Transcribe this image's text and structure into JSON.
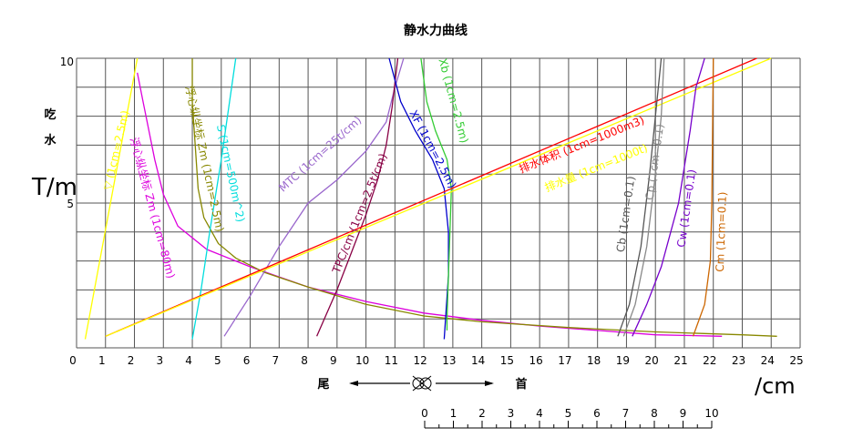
{
  "chart_data": {
    "type": "line",
    "title": "静水力曲线",
    "ylabel_chars": [
      "吃",
      "水"
    ],
    "ylabel_unit": "T/m",
    "xlabel": "/cm",
    "ylim": [
      0,
      10
    ],
    "xlim": [
      0,
      25
    ],
    "y_tick_labels": [
      "5",
      "10"
    ],
    "x_tick_labels": [
      "0",
      "1",
      "2",
      "3",
      "4",
      "5",
      "6",
      "7",
      "8",
      "9",
      "10",
      "11",
      "12",
      "13",
      "14",
      "15",
      "16",
      "17",
      "18",
      "19",
      "20",
      "21",
      "22",
      "23",
      "24",
      "25"
    ],
    "direction": {
      "stern": "尾",
      "bow": "首"
    },
    "ruler": {
      "ticks": [
        "0",
        "1",
        "2",
        "3",
        "4",
        "5",
        "6",
        "7",
        "8",
        "9",
        "10"
      ]
    },
    "grid": true,
    "series": [
      {
        "name": "▽ (1cm=2.5m)",
        "color": "#ffff00",
        "points": [
          [
            0.3,
            0.3
          ],
          [
            2.1,
            10
          ]
        ],
        "label": "▽ (1cm=2.5m)",
        "label_at": [
          1.5,
          6.8
        ],
        "label_rot": -77
      },
      {
        "name": "浮心纵坐标 Zm (1cm=80m)",
        "color": "#dd00dd",
        "points": [
          [
            2.1,
            9.5
          ],
          [
            2.3,
            8.5
          ],
          [
            2.5,
            7.5
          ],
          [
            2.7,
            6.5
          ],
          [
            3.0,
            5.3
          ],
          [
            3.5,
            4.2
          ],
          [
            4.5,
            3.4
          ],
          [
            6,
            2.8
          ],
          [
            8,
            2.1
          ],
          [
            10,
            1.6
          ],
          [
            12,
            1.2
          ],
          [
            14,
            0.95
          ],
          [
            16,
            0.75
          ],
          [
            18,
            0.6
          ],
          [
            20,
            0.45
          ],
          [
            22.3,
            0.4
          ]
        ],
        "label": "浮心纵坐标 Zm (1cm=80m)",
        "label_at": [
          2.5,
          4.8
        ],
        "label_rot": 75
      },
      {
        "name": "浮心纵坐标 Zm (1cm=2.5m)",
        "color": "#888800",
        "points": [
          [
            4.0,
            10
          ],
          [
            4.0,
            8.5
          ],
          [
            4.1,
            7.0
          ],
          [
            4.2,
            5.5
          ],
          [
            4.4,
            4.5
          ],
          [
            4.9,
            3.6
          ],
          [
            5.5,
            3.1
          ],
          [
            6.5,
            2.6
          ],
          [
            8,
            2.1
          ],
          [
            10,
            1.5
          ],
          [
            12,
            1.1
          ],
          [
            14,
            0.9
          ],
          [
            17,
            0.7
          ],
          [
            20,
            0.55
          ],
          [
            23,
            0.45
          ],
          [
            24.2,
            0.4
          ]
        ],
        "label": "浮心纵坐标 Zm (1cm=2.5m)",
        "label_at": [
          4.3,
          6.5
        ],
        "label_rot": 78
      },
      {
        "name": "S (1cm=500m^2)",
        "color": "#00dddd",
        "points": [
          [
            4.0,
            0.3
          ],
          [
            4.3,
            2.0
          ],
          [
            4.6,
            4.0
          ],
          [
            5.0,
            6.5
          ],
          [
            5.5,
            10
          ]
        ],
        "label": "S (1cm=500m^2)",
        "label_at": [
          5.2,
          6.0
        ],
        "label_rot": 78
      },
      {
        "name": "MTC (1cm=25t/cm)",
        "color": "#9966cc",
        "points": [
          [
            5.1,
            0.4
          ],
          [
            6,
            1.8
          ],
          [
            7,
            3.5
          ],
          [
            8,
            5.0
          ],
          [
            9,
            5.8
          ],
          [
            10,
            6.8
          ],
          [
            10.7,
            7.8
          ],
          [
            11.0,
            9.0
          ],
          [
            11.3,
            10
          ]
        ],
        "label": "MTC (1cm=25t/cm)",
        "label_at": [
          8.5,
          6.6
        ],
        "label_rot": -42
      },
      {
        "name": "TPC/cm (1cm=2.5t/cm)",
        "color": "#880044",
        "points": [
          [
            8.3,
            0.4
          ],
          [
            9,
            2.0
          ],
          [
            9.5,
            3.3
          ],
          [
            10,
            4.6
          ],
          [
            10.4,
            5.8
          ],
          [
            10.7,
            7.0
          ],
          [
            10.9,
            8.3
          ],
          [
            11.1,
            10
          ]
        ],
        "label": "TPC/cm (1cm=2.5t/cm)",
        "label_at": [
          9.9,
          4.6
        ],
        "label_rot": -68
      },
      {
        "name": "XF (1cm=2.5m)",
        "color": "#0000cc",
        "points": [
          [
            10.8,
            10
          ],
          [
            11.2,
            8.5
          ],
          [
            11.7,
            7.5
          ],
          [
            12.3,
            6.5
          ],
          [
            12.7,
            5.5
          ],
          [
            12.85,
            4.0
          ],
          [
            12.85,
            2.5
          ],
          [
            12.75,
            1.0
          ],
          [
            12.7,
            0.3
          ]
        ],
        "label": "XF (1cm=2.5m)",
        "label_at": [
          12.2,
          6.8
        ],
        "label_rot": 62
      },
      {
        "name": "Xb (1cm=2.5m)",
        "color": "#33cc33",
        "points": [
          [
            11.9,
            10
          ],
          [
            12.1,
            8.5
          ],
          [
            12.4,
            7.5
          ],
          [
            12.8,
            6.5
          ],
          [
            12.95,
            5.5
          ],
          [
            12.9,
            4.0
          ],
          [
            12.85,
            2.5
          ],
          [
            12.8,
            1.0
          ],
          [
            12.8,
            0.6
          ]
        ],
        "label": "Xb (1cm=2.5m)",
        "label_at": [
          12.9,
          8.5
        ],
        "label_rot": 75
      },
      {
        "name": "排水体积 (1cm=1000m3)",
        "color": "#ff0000",
        "points": [
          [
            1.0,
            0.4
          ],
          [
            23.5,
            10
          ]
        ],
        "label": "排水体积 (1cm=1000m3)",
        "label_at": [
          17.5,
          6.9
        ],
        "label_rot": -22
      },
      {
        "name": "排水量 (1cm=1000t)",
        "color": "#ffff00",
        "points": [
          [
            1.0,
            0.4
          ],
          [
            24.0,
            10
          ]
        ],
        "label": "排水量 (1cm=1000t)",
        "label_at": [
          18.0,
          6.1
        ],
        "label_rot": -22
      },
      {
        "name": "Cb (1cm=0.1)",
        "color": "#555555",
        "points": [
          [
            18.7,
            0.4
          ],
          [
            19.1,
            1.5
          ],
          [
            19.5,
            3.5
          ],
          [
            19.8,
            6.0
          ],
          [
            20.0,
            8.0
          ],
          [
            20.2,
            10
          ]
        ],
        "label": "Cb (1cm=0.1)",
        "label_at": [
          19.1,
          4.6
        ],
        "label_rot": -82
      },
      {
        "name": "Cp (1cm=0.1)",
        "color": "#888888",
        "points": [
          [
            18.9,
            0.4
          ],
          [
            19.3,
            1.5
          ],
          [
            19.7,
            3.5
          ],
          [
            20.0,
            6.0
          ],
          [
            20.2,
            8.0
          ],
          [
            20.3,
            10
          ]
        ],
        "label": "Cp (1cm=0.1)",
        "label_at": [
          20.1,
          6.4
        ],
        "label_rot": -82
      },
      {
        "name": "Cw (1cm=0.1)",
        "color": "#7700cc",
        "points": [
          [
            19.2,
            0.4
          ],
          [
            19.7,
            1.5
          ],
          [
            20.2,
            2.8
          ],
          [
            20.8,
            5.0
          ],
          [
            21.2,
            7.5
          ],
          [
            21.4,
            9.0
          ],
          [
            21.7,
            10
          ]
        ],
        "label": "Cw (1cm=0.1)",
        "label_at": [
          21.2,
          4.8
        ],
        "label_rot": -82
      },
      {
        "name": "Cm (1cm=0.1)",
        "color": "#cc6600",
        "points": [
          [
            21.3,
            0.4
          ],
          [
            21.7,
            1.5
          ],
          [
            21.9,
            3.0
          ],
          [
            21.95,
            5.0
          ],
          [
            22.0,
            10
          ]
        ],
        "label": "Cm (1cm=0.1)",
        "label_at": [
          22.4,
          4.0
        ],
        "label_rot": -88
      }
    ]
  }
}
